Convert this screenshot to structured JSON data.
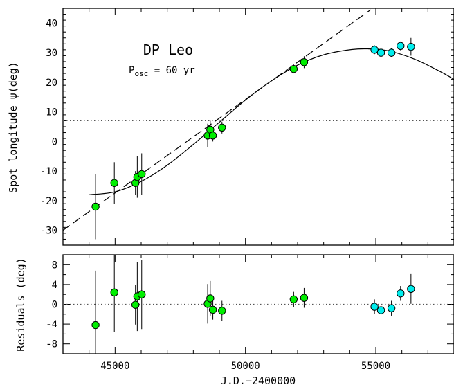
{
  "chart_data": [
    {
      "type": "scatter",
      "panel": "top",
      "title": "DP Leo",
      "subtitle_base": "P",
      "subtitle_sub": "osc",
      "subtitle_rest": " = 60 yr",
      "ylabel": "Spot longitude ψ(deg)",
      "xlim": [
        43000,
        58000
      ],
      "ylim": [
        -35,
        45
      ],
      "yticks": [
        -30,
        -20,
        -10,
        0,
        10,
        20,
        30,
        40
      ],
      "reference_line": 7,
      "linear_fit": {
        "x": [
          43000,
          54800
        ],
        "y": [
          -30,
          44.5
        ]
      },
      "sinusoid_fit": {
        "x": [
          44000,
          45000,
          46000,
          47000,
          48000,
          49000,
          50000,
          51000,
          52000,
          53000,
          54000,
          54700,
          55500,
          56500,
          57500,
          58000
        ],
        "y": [
          -18,
          -17,
          -13.5,
          -8,
          -1,
          6.5,
          14,
          20.5,
          25.8,
          29.3,
          31,
          31.3,
          30.6,
          27.8,
          23.5,
          21
        ]
      },
      "series": [
        {
          "color": "#00ee00",
          "points": [
            {
              "x": 44250,
              "y": -22,
              "err": 11
            },
            {
              "x": 44970,
              "y": -14,
              "err": 7
            },
            {
              "x": 45780,
              "y": -14,
              "err": 4
            },
            {
              "x": 45850,
              "y": -12,
              "err": 7
            },
            {
              "x": 46020,
              "y": -11,
              "err": 7
            },
            {
              "x": 48550,
              "y": 2,
              "err": 4
            },
            {
              "x": 48650,
              "y": 4,
              "err": 3
            },
            {
              "x": 48750,
              "y": 2,
              "err": 2
            },
            {
              "x": 49100,
              "y": 4.7,
              "err": 2
            },
            {
              "x": 51850,
              "y": 24.5,
              "err": 1.5
            },
            {
              "x": 52250,
              "y": 26.8,
              "err": 2
            }
          ]
        },
        {
          "color": "#00eeee",
          "points": [
            {
              "x": 54950,
              "y": 31,
              "err": 1.5
            },
            {
              "x": 55200,
              "y": 30,
              "err": 1
            },
            {
              "x": 55600,
              "y": 30,
              "err": 1.5
            },
            {
              "x": 55950,
              "y": 32.3,
              "err": 1.5
            },
            {
              "x": 56350,
              "y": 32,
              "err": 3
            }
          ]
        }
      ]
    },
    {
      "type": "scatter",
      "panel": "bottom",
      "ylabel": "Residuals (deg)",
      "xlabel": "J.D.−2400000",
      "xlim": [
        43000,
        58000
      ],
      "ylim": [
        -10,
        10
      ],
      "yticks": [
        -8,
        -4,
        0,
        4,
        8
      ],
      "xticks": [
        45000,
        50000,
        55000
      ],
      "reference_line": 0,
      "series": [
        {
          "color": "#00ee00",
          "points": [
            {
              "x": 44250,
              "y": -4.2,
              "err": 11
            },
            {
              "x": 44970,
              "y": 2.4,
              "err": 8
            },
            {
              "x": 45780,
              "y": -0.1,
              "err": 4
            },
            {
              "x": 45850,
              "y": 1.6,
              "err": 7
            },
            {
              "x": 46020,
              "y": 2,
              "err": 7
            },
            {
              "x": 48550,
              "y": 0.1,
              "err": 4
            },
            {
              "x": 48650,
              "y": 1.2,
              "err": 3.5
            },
            {
              "x": 48750,
              "y": -1.1,
              "err": 2
            },
            {
              "x": 49100,
              "y": -1.3,
              "err": 2
            },
            {
              "x": 51850,
              "y": 1,
              "err": 1.5
            },
            {
              "x": 52250,
              "y": 1.3,
              "err": 2
            }
          ]
        },
        {
          "color": "#00eeee",
          "points": [
            {
              "x": 54950,
              "y": -0.5,
              "err": 1.5
            },
            {
              "x": 55200,
              "y": -1.2,
              "err": 1
            },
            {
              "x": 55600,
              "y": -0.8,
              "err": 1.5
            },
            {
              "x": 55950,
              "y": 2.2,
              "err": 1.5
            },
            {
              "x": 56350,
              "y": 3.1,
              "err": 3
            }
          ]
        }
      ]
    }
  ]
}
